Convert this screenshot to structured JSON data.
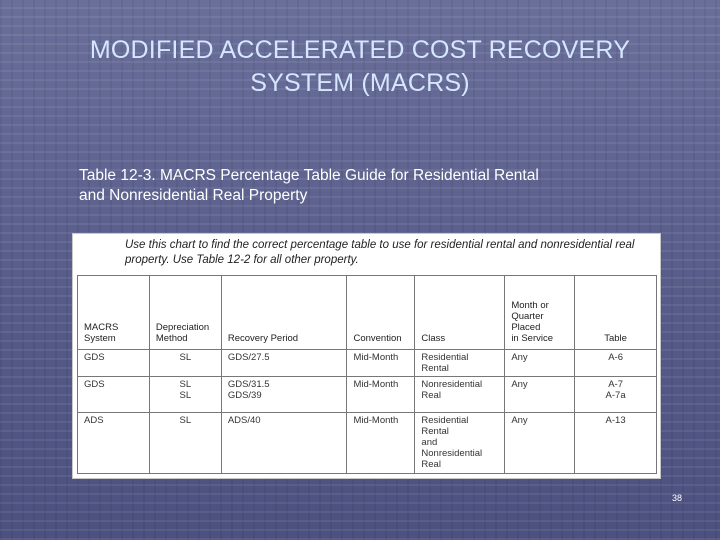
{
  "slide": {
    "title_lines": [
      "MODIFIED ACCELERATED COST RECOVERY",
      "SYSTEM (MACRS)"
    ],
    "caption_lines": [
      "Table 12-3.  MACRS Percentage Table Guide for Residential Rental",
      "and Nonresidential Real Property"
    ],
    "page_number": "38"
  },
  "table_image": {
    "instruction_lines": [
      "Use this chart to find the correct percentage table to use for residential rental and nonresidential real",
      "property. Use Table 12-2 for all other property."
    ],
    "headers": {
      "system": [
        "MACRS",
        "System"
      ],
      "method": [
        "Depreciation",
        "Method"
      ],
      "period": [
        "Recovery Period"
      ],
      "convention": [
        "Convention"
      ],
      "class": [
        "Class"
      ],
      "placed": [
        "Month or",
        "Quarter",
        "Placed",
        "in Service"
      ],
      "table": [
        "Table"
      ]
    },
    "rows": [
      {
        "system": [
          "GDS"
        ],
        "method": [
          "SL"
        ],
        "period": [
          "GDS/27.5"
        ],
        "convention": [
          "Mid-Month"
        ],
        "class": [
          "Residential Rental"
        ],
        "placed": [
          "Any"
        ],
        "table": [
          "A-6"
        ]
      },
      {
        "system": [
          "GDS"
        ],
        "method": [
          "SL",
          "SL"
        ],
        "period": [
          "GDS/31.5",
          "GDS/39"
        ],
        "convention": [
          "Mid-Month"
        ],
        "class": [
          "Nonresidential Real"
        ],
        "placed": [
          "Any"
        ],
        "table": [
          "A-7",
          "A-7a"
        ]
      },
      {
        "system": [
          "ADS"
        ],
        "method": [
          "SL"
        ],
        "period": [
          "ADS/40"
        ],
        "convention": [
          "Mid-Month"
        ],
        "class": [
          "Residential Rental",
          "and",
          "Nonresidential Real"
        ],
        "placed": [
          "Any"
        ],
        "table": [
          "A-13"
        ]
      }
    ]
  }
}
